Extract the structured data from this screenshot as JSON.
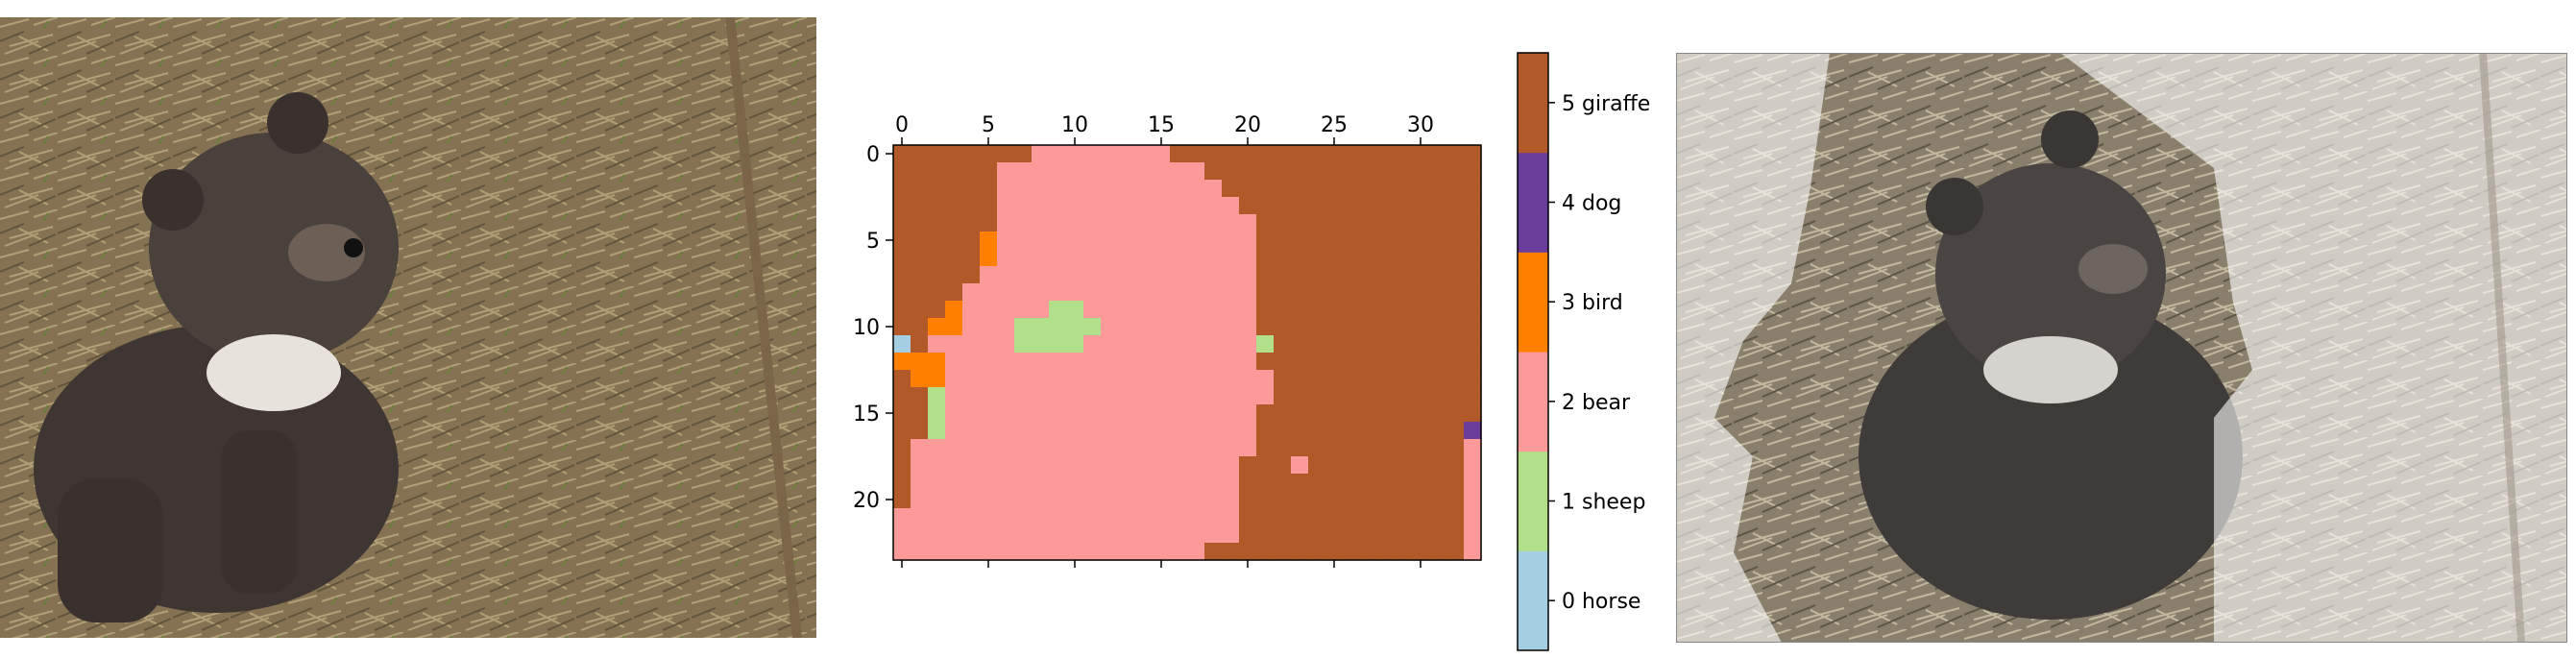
{
  "panels": [
    {
      "name": "input-photo",
      "subject": "bear cub sitting on dry grass"
    },
    {
      "name": "segmentation-map"
    },
    {
      "name": "segmentation-overlay"
    }
  ],
  "chart_data": {
    "type": "heatmap",
    "x_ticks": [
      0,
      5,
      10,
      15,
      20,
      25,
      30
    ],
    "y_ticks": [
      0,
      5,
      10,
      15,
      20
    ],
    "xlim": [
      -0.5,
      33.5
    ],
    "ylim": [
      23.5,
      -0.5
    ],
    "grid": false,
    "n_cols": 34,
    "n_rows": 24,
    "background_class": 5,
    "regions": [
      {
        "class": 2,
        "cells": [
          [
            0,
            8,
            15
          ],
          [
            1,
            6,
            17
          ],
          [
            2,
            6,
            18
          ],
          [
            3,
            6,
            19
          ],
          [
            4,
            6,
            20
          ],
          [
            5,
            6,
            20
          ],
          [
            6,
            5,
            20
          ],
          [
            7,
            5,
            20
          ],
          [
            8,
            4,
            20
          ],
          [
            9,
            3,
            20
          ],
          [
            10,
            3,
            20
          ],
          [
            11,
            2,
            20
          ],
          [
            12,
            2,
            20
          ],
          [
            13,
            2,
            21
          ],
          [
            14,
            2,
            21
          ],
          [
            15,
            2,
            20
          ],
          [
            16,
            2,
            20
          ],
          [
            17,
            1,
            20
          ],
          [
            18,
            1,
            19
          ],
          [
            19,
            1,
            19
          ],
          [
            20,
            1,
            19
          ],
          [
            21,
            0,
            19
          ],
          [
            22,
            0,
            19
          ],
          [
            23,
            0,
            17
          ]
        ]
      },
      {
        "class": 2,
        "cells": [
          [
            18,
            23,
            23
          ],
          [
            16,
            33,
            33
          ],
          [
            17,
            33,
            33
          ],
          [
            18,
            33,
            33
          ],
          [
            19,
            33,
            33
          ],
          [
            20,
            33,
            33
          ],
          [
            21,
            33,
            33
          ],
          [
            22,
            33,
            33
          ],
          [
            23,
            33,
            33
          ]
        ]
      },
      {
        "class": 1,
        "cells": [
          [
            9,
            9,
            10
          ],
          [
            10,
            7,
            11
          ],
          [
            11,
            7,
            10
          ],
          [
            11,
            21,
            21
          ],
          [
            14,
            2,
            2
          ],
          [
            15,
            2,
            2
          ],
          [
            16,
            2,
            2
          ]
        ]
      },
      {
        "class": 3,
        "cells": [
          [
            5,
            5,
            5
          ],
          [
            6,
            5,
            5
          ],
          [
            9,
            3,
            3
          ],
          [
            10,
            2,
            3
          ],
          [
            12,
            0,
            2
          ],
          [
            13,
            1,
            2
          ]
        ]
      },
      {
        "class": 0,
        "cells": [
          [
            11,
            0,
            0
          ]
        ]
      },
      {
        "class": 4,
        "cells": [
          [
            16,
            33,
            33
          ]
        ]
      }
    ],
    "colorbar": {
      "labels": [
        "0 horse",
        "1 sheep",
        "2 bear",
        "3 bird",
        "4 dog",
        "5 giraffe"
      ],
      "colors": [
        "#a6cee3",
        "#b2df8a",
        "#fb9a99",
        "#ff7f00",
        "#6a3d9a",
        "#b15928"
      ]
    }
  }
}
